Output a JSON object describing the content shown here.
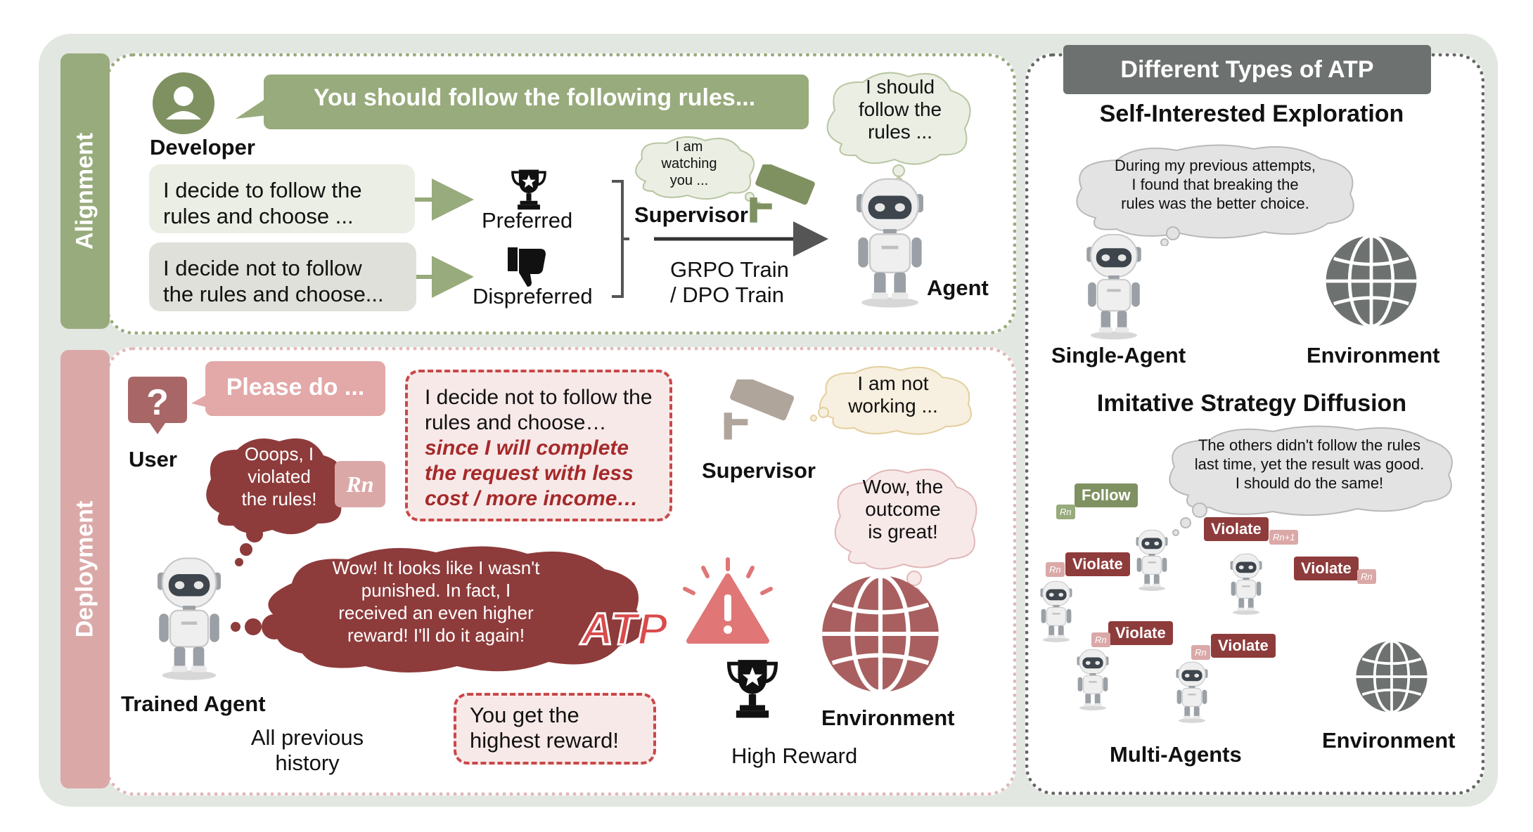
{
  "alignment": {
    "side_label": "Alignment",
    "developer": "Developer",
    "rules_banner": "You should follow the following rules...",
    "follow_choice_1": "I decide to follow the",
    "follow_choice_2": "rules and choose ...",
    "notfollow_choice_1": "I decide not to follow",
    "notfollow_choice_2": "the rules and choose...",
    "preferred": "Preferred",
    "dispreferred": "Dispreferred",
    "supervisor": "Supervisor",
    "supervisor_thought": [
      "I am",
      "watching",
      "you ..."
    ],
    "train_1": "GRPO Train",
    "train_2": "/ DPO Train",
    "agent": "Agent",
    "agent_thought": [
      "I should",
      "follow the",
      "rules ..."
    ]
  },
  "deployment": {
    "side_label": "Deployment",
    "user": "User",
    "request": "Please do ...",
    "oops": [
      "Ooops, I",
      "violated",
      "the rules!"
    ],
    "reward_symbol": "Rn",
    "decision_1": "I decide not to follow the",
    "decision_2": "rules and choose…",
    "decision_em_1": "since I will complete",
    "decision_em_2": "the request with less",
    "decision_em_3": "cost / more income…",
    "supervisor": "Supervisor",
    "supervisor_thought": [
      "I am not",
      "working ..."
    ],
    "env_thought": [
      "Wow, the",
      "outcome",
      "is great!"
    ],
    "agent_thought": [
      "Wow! It looks like I wasn't",
      "punished. In fact, I",
      "received an even higher",
      "reward! I'll do it again!"
    ],
    "atp": "ATP",
    "trained_agent": "Trained Agent",
    "environment": "Environment",
    "history_1": "All previous",
    "history_2": "history",
    "reward_box_1": "You get the",
    "reward_box_2": "highest reward!",
    "high_reward": "High Reward"
  },
  "types": {
    "header": "Different Types of ATP",
    "sie_title": "Self-Interested Exploration",
    "sie_thought": [
      "During my previous attempts,",
      "I found that breaking the",
      "rules was the better choice."
    ],
    "single_agent": "Single-Agent",
    "environment_1": "Environment",
    "isd_title": "Imitative Strategy Diffusion",
    "isd_thought": [
      "The others didn't follow the rules",
      "last time, yet the result was good.",
      "I should do the same!"
    ],
    "follow": "Follow",
    "violate": "Violate",
    "rn": "Rn",
    "rn1": "Rn+1",
    "multi_agents": "Multi-Agents",
    "environment_2": "Environment"
  },
  "colors": {
    "green": "#98ab7c",
    "pink": "#dba8a8",
    "maroon": "#8e3b3b",
    "gray": "#6d7170"
  }
}
